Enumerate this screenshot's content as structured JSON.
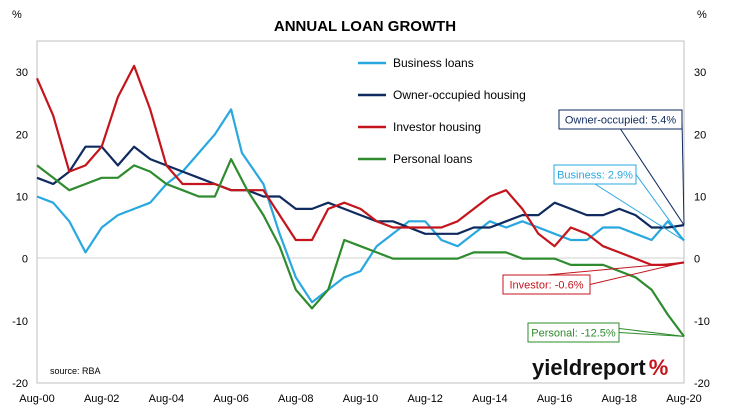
{
  "chart_data": {
    "type": "line",
    "title": "ANNUAL LOAN GROWTH",
    "unit_left": "%",
    "unit_right": "%",
    "source": "source: RBA",
    "ylim": [
      -20,
      35
    ],
    "y_ticks": [
      -20,
      -10,
      0,
      10,
      20,
      30
    ],
    "x_ticks": [
      "Aug-00",
      "Aug-02",
      "Aug-04",
      "Aug-06",
      "Aug-08",
      "Aug-10",
      "Aug-12",
      "Aug-14",
      "Aug-16",
      "Aug-18",
      "Aug-20"
    ],
    "x_range": [
      "Aug-00",
      "Aug-20"
    ],
    "grid": false,
    "legend_position": "top-center",
    "series": [
      {
        "name": "Business loans",
        "color": "#29a8e0",
        "points": [
          [
            "Aug-00",
            10
          ],
          [
            "Feb-01",
            9
          ],
          [
            "Aug-01",
            6
          ],
          [
            "Feb-02",
            1
          ],
          [
            "Aug-02",
            5
          ],
          [
            "Feb-03",
            7
          ],
          [
            "Aug-03",
            8
          ],
          [
            "Feb-04",
            9
          ],
          [
            "Aug-04",
            12
          ],
          [
            "Feb-05",
            14
          ],
          [
            "Aug-05",
            17
          ],
          [
            "Feb-06",
            20
          ],
          [
            "Aug-06",
            24
          ],
          [
            "Dec-06",
            17
          ],
          [
            "Aug-07",
            12
          ],
          [
            "Feb-08",
            4
          ],
          [
            "Aug-08",
            -3
          ],
          [
            "Feb-09",
            -7
          ],
          [
            "Aug-09",
            -5
          ],
          [
            "Feb-10",
            -3
          ],
          [
            "Aug-10",
            -2
          ],
          [
            "Feb-11",
            2
          ],
          [
            "Aug-11",
            4
          ],
          [
            "Feb-12",
            6
          ],
          [
            "Aug-12",
            6
          ],
          [
            "Feb-13",
            3
          ],
          [
            "Aug-13",
            2
          ],
          [
            "Feb-14",
            4
          ],
          [
            "Aug-14",
            6
          ],
          [
            "Feb-15",
            5
          ],
          [
            "Aug-15",
            6
          ],
          [
            "Feb-16",
            5
          ],
          [
            "Aug-16",
            4
          ],
          [
            "Feb-17",
            3
          ],
          [
            "Aug-17",
            3
          ],
          [
            "Feb-18",
            5
          ],
          [
            "Aug-18",
            5
          ],
          [
            "Feb-19",
            4
          ],
          [
            "Aug-19",
            3
          ],
          [
            "Feb-20",
            6
          ],
          [
            "Aug-20",
            2.9
          ]
        ]
      },
      {
        "name": "Owner-occupied housing",
        "color": "#0f2a5e",
        "points": [
          [
            "Aug-00",
            13
          ],
          [
            "Feb-01",
            12
          ],
          [
            "Aug-01",
            14
          ],
          [
            "Feb-02",
            18
          ],
          [
            "Aug-02",
            18
          ],
          [
            "Feb-03",
            15
          ],
          [
            "Aug-03",
            18
          ],
          [
            "Feb-04",
            16
          ],
          [
            "Aug-04",
            15
          ],
          [
            "Feb-05",
            14
          ],
          [
            "Aug-05",
            13
          ],
          [
            "Feb-06",
            12
          ],
          [
            "Aug-06",
            11
          ],
          [
            "Feb-07",
            11
          ],
          [
            "Aug-07",
            10
          ],
          [
            "Feb-08",
            10
          ],
          [
            "Aug-08",
            8
          ],
          [
            "Feb-09",
            8
          ],
          [
            "Aug-09",
            9
          ],
          [
            "Feb-10",
            8
          ],
          [
            "Aug-10",
            7
          ],
          [
            "Feb-11",
            6
          ],
          [
            "Aug-11",
            6
          ],
          [
            "Feb-12",
            5
          ],
          [
            "Aug-12",
            4
          ],
          [
            "Feb-13",
            4
          ],
          [
            "Aug-13",
            4
          ],
          [
            "Feb-14",
            5
          ],
          [
            "Aug-14",
            5
          ],
          [
            "Feb-15",
            6
          ],
          [
            "Aug-15",
            7
          ],
          [
            "Feb-16",
            7
          ],
          [
            "Aug-16",
            9
          ],
          [
            "Feb-17",
            8
          ],
          [
            "Aug-17",
            7
          ],
          [
            "Feb-18",
            7
          ],
          [
            "Aug-18",
            8
          ],
          [
            "Feb-19",
            7
          ],
          [
            "Aug-19",
            5
          ],
          [
            "Feb-20",
            5
          ],
          [
            "Aug-20",
            5.4
          ]
        ]
      },
      {
        "name": "Investor housing",
        "color": "#c4151c",
        "points": [
          [
            "Aug-00",
            29
          ],
          [
            "Feb-01",
            23
          ],
          [
            "Aug-01",
            14
          ],
          [
            "Feb-02",
            15
          ],
          [
            "Aug-02",
            18
          ],
          [
            "Feb-03",
            26
          ],
          [
            "Aug-03",
            31
          ],
          [
            "Feb-04",
            24
          ],
          [
            "Aug-04",
            15
          ],
          [
            "Feb-05",
            12
          ],
          [
            "Aug-05",
            12
          ],
          [
            "Feb-06",
            12
          ],
          [
            "Aug-06",
            11
          ],
          [
            "Feb-07",
            11
          ],
          [
            "Aug-07",
            11
          ],
          [
            "Feb-08",
            7
          ],
          [
            "Aug-08",
            3
          ],
          [
            "Feb-09",
            3
          ],
          [
            "Aug-09",
            8
          ],
          [
            "Feb-10",
            9
          ],
          [
            "Aug-10",
            8
          ],
          [
            "Feb-11",
            6
          ],
          [
            "Aug-11",
            5
          ],
          [
            "Feb-12",
            5
          ],
          [
            "Aug-12",
            5
          ],
          [
            "Feb-13",
            5
          ],
          [
            "Aug-13",
            6
          ],
          [
            "Feb-14",
            8
          ],
          [
            "Aug-14",
            10
          ],
          [
            "Feb-15",
            11
          ],
          [
            "Aug-15",
            8
          ],
          [
            "Feb-16",
            4
          ],
          [
            "Aug-16",
            2
          ],
          [
            "Feb-17",
            5
          ],
          [
            "Aug-17",
            4
          ],
          [
            "Feb-18",
            2
          ],
          [
            "Aug-18",
            1
          ],
          [
            "Feb-19",
            0
          ],
          [
            "Aug-19",
            -1
          ],
          [
            "Feb-20",
            -1
          ],
          [
            "Aug-20",
            -0.6
          ]
        ]
      },
      {
        "name": "Personal loans",
        "color": "#2e8b2e",
        "points": [
          [
            "Aug-00",
            15
          ],
          [
            "Feb-01",
            13
          ],
          [
            "Aug-01",
            11
          ],
          [
            "Feb-02",
            12
          ],
          [
            "Aug-02",
            13
          ],
          [
            "Feb-03",
            13
          ],
          [
            "Aug-03",
            15
          ],
          [
            "Feb-04",
            14
          ],
          [
            "Aug-04",
            12
          ],
          [
            "Feb-05",
            11
          ],
          [
            "Aug-05",
            10
          ],
          [
            "Feb-06",
            10
          ],
          [
            "Aug-06",
            16
          ],
          [
            "Feb-07",
            11
          ],
          [
            "Aug-07",
            7
          ],
          [
            "Feb-08",
            2
          ],
          [
            "Aug-08",
            -5
          ],
          [
            "Feb-09",
            -8
          ],
          [
            "Aug-09",
            -5
          ],
          [
            "Feb-10",
            3
          ],
          [
            "Aug-10",
            2
          ],
          [
            "Feb-11",
            1
          ],
          [
            "Aug-11",
            0
          ],
          [
            "Feb-12",
            0
          ],
          [
            "Aug-12",
            0
          ],
          [
            "Feb-13",
            0
          ],
          [
            "Aug-13",
            0
          ],
          [
            "Feb-14",
            1
          ],
          [
            "Aug-14",
            1
          ],
          [
            "Feb-15",
            1
          ],
          [
            "Aug-15",
            0
          ],
          [
            "Feb-16",
            0
          ],
          [
            "Aug-16",
            0
          ],
          [
            "Feb-17",
            -1
          ],
          [
            "Aug-17",
            -1
          ],
          [
            "Feb-18",
            -1
          ],
          [
            "Aug-18",
            -2
          ],
          [
            "Feb-19",
            -3
          ],
          [
            "Aug-19",
            -5
          ],
          [
            "Feb-20",
            -9
          ],
          [
            "Aug-20",
            -12.5
          ]
        ]
      }
    ],
    "annotations": [
      {
        "text": "Owner-occupied: 5.4%",
        "series": "Owner-occupied housing",
        "value": 5.4,
        "color": "#0f2a5e"
      },
      {
        "text": "Business: 2.9%",
        "series": "Business loans",
        "value": 2.9,
        "color": "#29a8e0"
      },
      {
        "text": "Investor: -0.6%",
        "series": "Investor housing",
        "value": -0.6,
        "color": "#c4151c"
      },
      {
        "text": "Personal: -12.5%",
        "series": "Personal loans",
        "value": -12.5,
        "color": "#2e8b2e"
      }
    ],
    "watermark": {
      "part1": "yieldreport",
      "part2": "%"
    }
  }
}
